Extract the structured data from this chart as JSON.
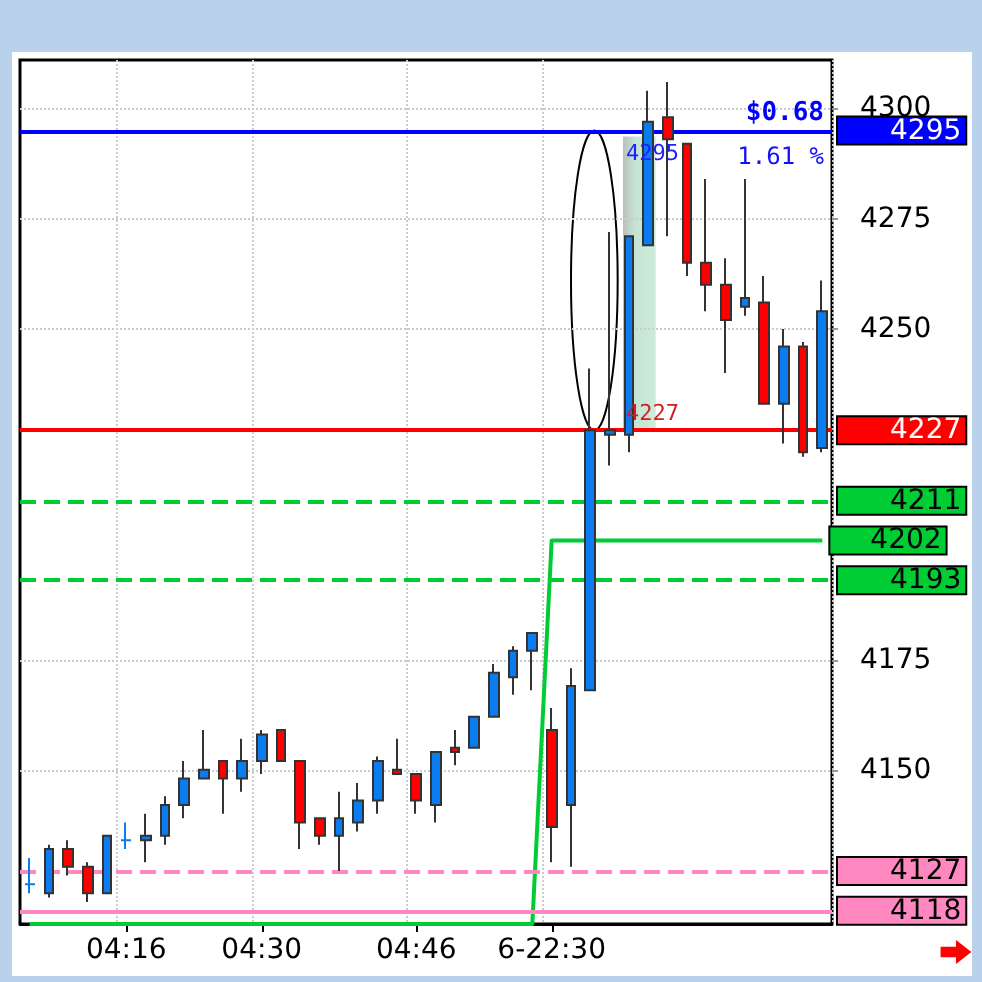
{
  "chart_data": {
    "type": "candlestick",
    "categories": [
      null,
      null,
      null,
      null,
      null,
      "04:16",
      null,
      null,
      null,
      null,
      null,
      null,
      "04:30",
      null,
      null,
      null,
      null,
      null,
      null,
      null,
      "04:46",
      null,
      null,
      null,
      null,
      null,
      null,
      "6-22:30",
      null,
      null,
      null,
      null,
      null,
      null,
      null,
      null,
      null,
      null,
      null,
      null,
      null,
      null
    ],
    "ohlc": [
      [
        4124,
        4130,
        4122,
        4124
      ],
      [
        4122,
        4133,
        4121,
        4132
      ],
      [
        4132,
        4134,
        4126,
        4128
      ],
      [
        4128,
        4129,
        4120,
        4122
      ],
      [
        4122,
        4135,
        4122,
        4135
      ],
      [
        4134,
        4138,
        4132,
        4134
      ],
      [
        4134,
        4140,
        4129,
        4135
      ],
      [
        4135,
        4144,
        4133,
        4142
      ],
      [
        4142,
        4152,
        4139,
        4148
      ],
      [
        4148,
        4159,
        4148,
        4150
      ],
      [
        4152,
        4152,
        4140,
        4148
      ],
      [
        4148,
        4157,
        4145,
        4152
      ],
      [
        4152,
        4159,
        4149,
        4158
      ],
      [
        4159,
        4159,
        4152,
        4152
      ],
      [
        4152,
        4152,
        4132,
        4138
      ],
      [
        4139,
        4139,
        4133,
        4135
      ],
      [
        4135,
        4145,
        4127,
        4139
      ],
      [
        4138,
        4147,
        4136,
        4143
      ],
      [
        4143,
        4153,
        4140,
        4152
      ],
      [
        4150,
        4157,
        4149,
        4149
      ],
      [
        4149,
        4149,
        4140,
        4143
      ],
      [
        4142,
        4154,
        4138,
        4154
      ],
      [
        4155,
        4159,
        4151,
        4154
      ],
      [
        4155,
        4162,
        4155,
        4162
      ],
      [
        4162,
        4174,
        4162,
        4172
      ],
      [
        4171,
        4178,
        4167,
        4177
      ],
      [
        4177,
        4181,
        4168,
        4181
      ],
      [
        4159,
        4164,
        4129,
        4137
      ],
      [
        4142,
        4173,
        4128,
        4169
      ],
      [
        4168,
        4241,
        4168,
        4227
      ],
      [
        4226,
        4272,
        4219,
        4227
      ],
      [
        4226,
        4271,
        4222,
        4271
      ],
      [
        4269,
        4304,
        4269,
        4297
      ],
      [
        4298,
        4306,
        4271,
        4293
      ],
      [
        4292,
        4292,
        4262,
        4265
      ],
      [
        4265,
        4284,
        4254,
        4260
      ],
      [
        4260,
        4266,
        4240,
        4252
      ],
      [
        4255,
        4284,
        4253,
        4257
      ],
      [
        4256,
        4262,
        4233,
        4233
      ],
      [
        4233,
        4250,
        4224,
        4246
      ],
      [
        4246,
        4247,
        4221,
        4222
      ],
      [
        4223,
        4261,
        4222,
        4254
      ]
    ],
    "colors": [
      "#0a7cf0",
      "#0a7cf0",
      "#ff0000",
      "#ff0000",
      "#0a7cf0",
      "#0a7cf0",
      "#0a7cf0",
      "#0a7cf0",
      "#0a7cf0",
      "#0a7cf0",
      "#ff0000",
      "#0a7cf0",
      "#0a7cf0",
      "#ff0000",
      "#ff0000",
      "#ff0000",
      "#0a7cf0",
      "#0a7cf0",
      "#0a7cf0",
      "#ff0000",
      "#ff0000",
      "#0a7cf0",
      "#ff0000",
      "#0a7cf0",
      "#0a7cf0",
      "#0a7cf0",
      "#0a7cf0",
      "#ff0000",
      "#0a7cf0",
      "#0a7cf0",
      "#0a7cf0",
      "#0a7cf0",
      "#0a7cf0",
      "#ff0000",
      "#ff0000",
      "#ff0000",
      "#ff0000",
      "#0a7cf0",
      "#ff0000",
      "#0a7cf0",
      "#ff0000",
      "#0a7cf0"
    ],
    "series": [
      {
        "type": "line",
        "color": "#00cc33",
        "values": [
          4115,
          4115,
          4115,
          4115,
          4115,
          4115,
          4115,
          4115,
          4115,
          4115,
          4115,
          4115,
          4115,
          4115,
          4115,
          4115,
          4115,
          4115,
          4115,
          4115,
          4115,
          4115,
          4115,
          4115,
          4115,
          4115,
          4115,
          4202,
          4202,
          4202,
          4202,
          4202,
          4202,
          4202,
          4202,
          4202,
          4202,
          4202,
          4202,
          4202,
          4202,
          4202
        ],
        "value_labels": [
          null,
          null,
          null,
          null,
          null,
          null,
          null,
          null,
          null,
          null,
          null,
          null,
          null,
          null,
          null,
          null,
          null,
          null,
          null,
          null,
          null,
          null,
          null,
          null,
          null,
          null,
          null,
          null,
          null,
          null,
          null,
          null,
          null,
          null,
          null,
          null,
          null,
          null,
          null,
          null,
          null,
          "4202"
        ]
      }
    ],
    "ylim": [
      4115,
      4311
    ],
    "yticks": [
      4150,
      4175,
      4250,
      4275,
      4300
    ],
    "grid": true,
    "ref_lines": [
      {
        "axis": "y",
        "value": 4295,
        "label": "4295",
        "color": "#0000ff",
        "line_style": "solid"
      },
      {
        "axis": "y",
        "value": 4227,
        "label": "4227",
        "color": "#ff0000",
        "line_style": "solid"
      },
      {
        "axis": "y",
        "value": 4211,
        "label": "4211",
        "color": "#00cc33",
        "line_style": "dashed"
      },
      {
        "axis": "y",
        "value": 4193,
        "label": "4193",
        "color": "#00cc33",
        "line_style": "dashed"
      },
      {
        "axis": "y",
        "value": 4127,
        "label": "4127",
        "color": "#ff88c0",
        "line_style": "dashed"
      },
      {
        "axis": "y",
        "value": 4118,
        "label": "4118",
        "color": "#ff88c0",
        "line_style": "solid"
      }
    ],
    "annotations": [
      "$0.68",
      "1.61 %",
      "4295",
      "4227"
    ]
  }
}
